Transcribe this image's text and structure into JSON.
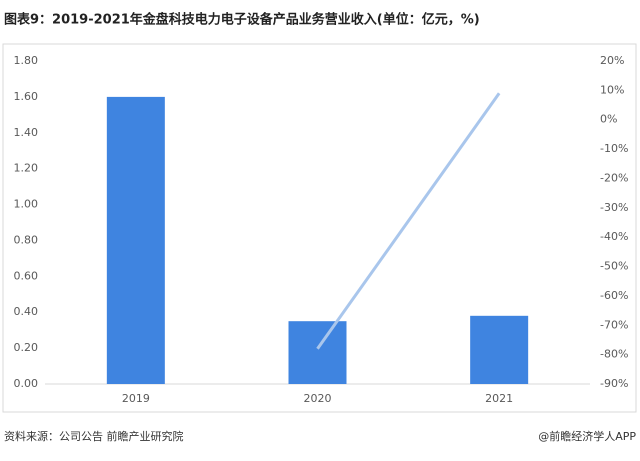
{
  "chart_data": {
    "type": "bar",
    "title": "图表9：2019-2021年金盘科技电力电子设备产品业务营业收入(单位：亿元，%)",
    "categories": [
      "2019",
      "2020",
      "2021"
    ],
    "series": [
      {
        "type": "bar",
        "color": "#3f84e0",
        "values": [
          1.6,
          0.35,
          0.38
        ]
      },
      {
        "type": "line",
        "axis": "y2",
        "color": "#a9c6ec",
        "values": [
          null,
          -78,
          9
        ]
      }
    ],
    "ylim": [
      0,
      1.8
    ],
    "yticks": [
      {
        "value": 0,
        "label": "0.00"
      },
      {
        "value": 0.2,
        "label": "0.20"
      },
      {
        "value": 0.4,
        "label": "0.40"
      },
      {
        "value": 0.6,
        "label": "0.60"
      },
      {
        "value": 0.8,
        "label": "0.80"
      },
      {
        "value": 1.0,
        "label": "1.00"
      },
      {
        "value": 1.2,
        "label": "1.20"
      },
      {
        "value": 1.4,
        "label": "1.40"
      },
      {
        "value": 1.6,
        "label": "1.60"
      },
      {
        "value": 1.8,
        "label": "1.80"
      }
    ],
    "y2lim": [
      -90,
      20
    ],
    "y2ticks": [
      {
        "value": -90,
        "label": "-90%"
      },
      {
        "value": -80,
        "label": "-80%"
      },
      {
        "value": -70,
        "label": "-70%"
      },
      {
        "value": -60,
        "label": "-60%"
      },
      {
        "value": -50,
        "label": "-50%"
      },
      {
        "value": -40,
        "label": "-40%"
      },
      {
        "value": -30,
        "label": "-30%"
      },
      {
        "value": -20,
        "label": "-20%"
      },
      {
        "value": -10,
        "label": "-10%"
      },
      {
        "value": 0,
        "label": "0%"
      },
      {
        "value": 10,
        "label": "10%"
      },
      {
        "value": 20,
        "label": "20%"
      }
    ],
    "source": "资料来源：公司公告 前瞻产业研究院",
    "credit": "@前瞻经济学人APP"
  }
}
